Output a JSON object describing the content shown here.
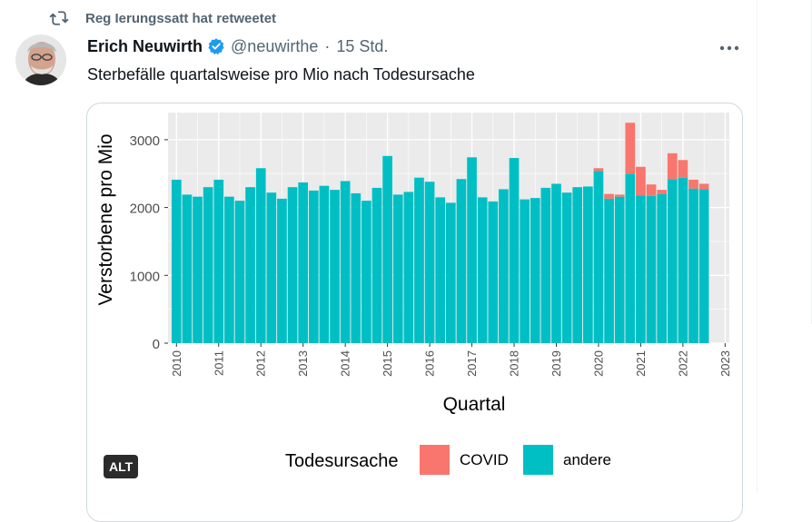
{
  "retweet": {
    "text": "Reg Ierungssatt hat retweetet",
    "icon": "retweet-icon"
  },
  "tweet": {
    "author_name": "Erich Neuwirth",
    "handle": "@neuwirthe",
    "separator": "·",
    "time": "15 Std.",
    "text": "Sterbefälle quartalsweise pro Mio nach Todesursache",
    "more_icon": "more-dots-icon",
    "verified_icon": "verified-badge-icon"
  },
  "media": {
    "alt_label": "ALT"
  },
  "colors": {
    "covid": "#F8766D",
    "andere": "#00BFC4",
    "panel_bg": "#EBEBEB",
    "grid": "#FFFFFF",
    "verified": "#1D9BF0",
    "muted_text": "#536471"
  },
  "chart_data": {
    "type": "bar",
    "stacked": true,
    "xlabel": "Quartal",
    "ylabel": "Verstorbene pro Mio",
    "ylim": [
      0,
      3400
    ],
    "yticks": [
      0,
      1000,
      2000,
      3000
    ],
    "year_ticks": [
      "2010",
      "2011",
      "2012",
      "2013",
      "2014",
      "2015",
      "2016",
      "2017",
      "2018",
      "2019",
      "2020",
      "2021",
      "2022",
      "2023"
    ],
    "xlim": [
      2009.8,
      2023.1
    ],
    "grid": true,
    "legend_title": "Todesursache",
    "legend_position": "bottom",
    "series": [
      {
        "name": "andere",
        "values": [
          2410,
          2190,
          2160,
          2300,
          2410,
          2160,
          2100,
          2300,
          2580,
          2220,
          2130,
          2300,
          2370,
          2250,
          2320,
          2260,
          2390,
          2210,
          2100,
          2290,
          2760,
          2190,
          2230,
          2440,
          2380,
          2150,
          2070,
          2420,
          2740,
          2150,
          2090,
          2270,
          2730,
          2120,
          2140,
          2290,
          2350,
          2220,
          2300,
          2310,
          2540,
          2130,
          2160,
          2500,
          2180,
          2170,
          2200,
          2420,
          2440,
          2280,
          2270
        ]
      },
      {
        "name": "COVID",
        "values": [
          0,
          0,
          0,
          0,
          0,
          0,
          0,
          0,
          0,
          0,
          0,
          0,
          0,
          0,
          0,
          0,
          0,
          0,
          0,
          0,
          0,
          0,
          0,
          0,
          0,
          0,
          0,
          0,
          0,
          0,
          0,
          0,
          0,
          0,
          0,
          0,
          0,
          0,
          0,
          0,
          40,
          70,
          30,
          750,
          420,
          170,
          60,
          380,
          260,
          130,
          80
        ]
      }
    ]
  }
}
